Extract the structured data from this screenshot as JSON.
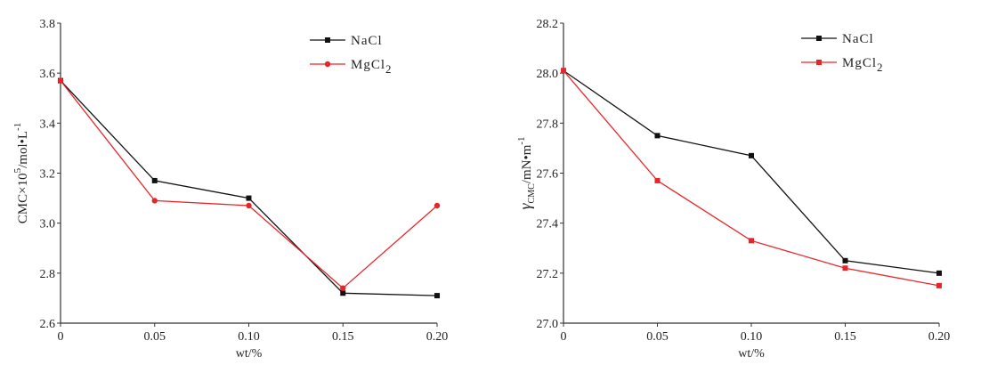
{
  "chart_data": [
    {
      "type": "line",
      "xlabel": "wt/%",
      "ylabel": "CMC×10⁵/mol•L⁻¹",
      "ylabel_parts": {
        "main": "CMC×10",
        "sup": "5",
        "unit": "/mol•L",
        "unit_sup": "-1"
      },
      "x": [
        0,
        0.05,
        0.1,
        0.15,
        0.2
      ],
      "xtick_labels": [
        "0",
        "0.05",
        "0.10",
        "0.15",
        "0.20"
      ],
      "ylim": [
        2.6,
        3.8
      ],
      "ytick_labels": [
        "2.6",
        "2.8",
        "3.0",
        "3.2",
        "3.4",
        "3.6",
        "3.8"
      ],
      "grid": false,
      "legend_position": "top-right",
      "series": [
        {
          "name": "NaCl",
          "name_main": "NaCl",
          "name_sub": "",
          "color": "#111111",
          "marker": "square",
          "values": [
            3.57,
            3.17,
            3.1,
            2.72,
            2.71
          ]
        },
        {
          "name": "MgCl2",
          "name_main": "MgCl",
          "name_sub": "2",
          "color": "#e8262a",
          "marker": "diamond",
          "values": [
            3.57,
            3.09,
            3.07,
            2.74,
            3.07
          ]
        }
      ]
    },
    {
      "type": "line",
      "xlabel": "wt/%",
      "ylabel": "γCMC/mN•m⁻¹",
      "ylabel_parts": {
        "main": "γ",
        "sub": "CMC",
        "unit": "/mN•m",
        "unit_sup": "-1"
      },
      "x": [
        0,
        0.05,
        0.1,
        0.15,
        0.2
      ],
      "xtick_labels": [
        "0",
        "0.05",
        "0.10",
        "0.15",
        "0.20"
      ],
      "ylim": [
        27.0,
        28.2
      ],
      "ytick_labels": [
        "27.0",
        "27.2",
        "27.4",
        "27.6",
        "27.8",
        "28.0",
        "28.2"
      ],
      "grid": false,
      "legend_position": "top-right",
      "series": [
        {
          "name": "NaCl",
          "name_main": "NaCl",
          "name_sub": "",
          "color": "#111111",
          "marker": "square",
          "values": [
            28.01,
            27.75,
            27.67,
            27.25,
            27.2
          ]
        },
        {
          "name": "MgCl2",
          "name_main": "MgCl",
          "name_sub": "2",
          "color": "#e8262a",
          "marker": "square",
          "values": [
            28.01,
            27.57,
            27.33,
            27.22,
            27.15
          ]
        }
      ]
    }
  ]
}
